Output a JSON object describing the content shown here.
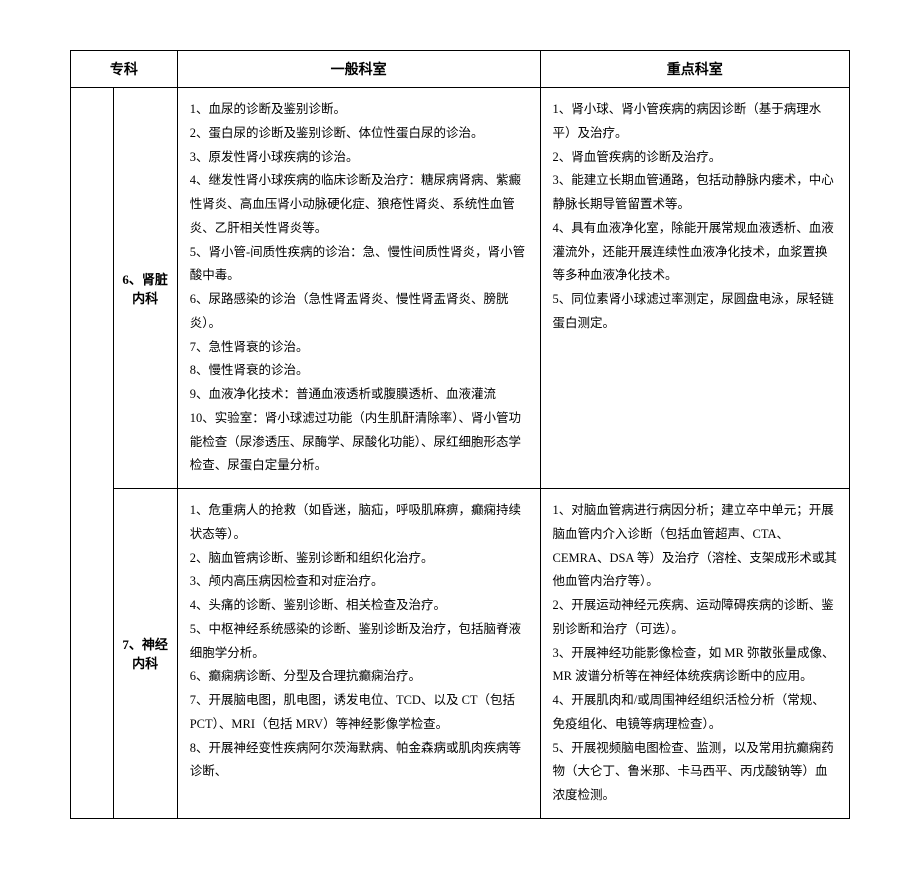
{
  "header": {
    "col1": "专科",
    "col2": "一般科室",
    "col3": "重点科室"
  },
  "rows": [
    {
      "sub": "6、肾脏内科",
      "general": [
        "1、血尿的诊断及鉴别诊断。",
        "2、蛋白尿的诊断及鉴别诊断、体位性蛋白尿的诊治。",
        "3、原发性肾小球疾病的诊治。",
        "4、继发性肾小球疾病的临床诊断及治疗：糖尿病肾病、紫癜性肾炎、高血压肾小动脉硬化症、狼疮性肾炎、系统性血管炎、乙肝相关性肾炎等。",
        "5、肾小管-间质性疾病的诊治：急、慢性间质性肾炎，肾小管酸中毒。",
        "6、尿路感染的诊治（急性肾盂肾炎、慢性肾盂肾炎、膀胱炎）。",
        "7、急性肾衰的诊治。",
        "8、慢性肾衰的诊治。",
        "9、血液净化技术：普通血液透析或腹膜透析、血液灌流",
        "10、实验室：肾小球滤过功能（内生肌酐清除率）、肾小管功能检查（尿渗透压、尿酶学、尿酸化功能）、尿红细胞形态学检查、尿蛋白定量分析。"
      ],
      "key": [
        "1、肾小球、肾小管疾病的病因诊断（基于病理水平）及治疗。",
        "2、肾血管疾病的诊断及治疗。",
        "3、能建立长期血管通路，包括动静脉内瘘术，中心静脉长期导管留置术等。",
        "4、具有血液净化室，除能开展常规血液透析、血液灌流外，还能开展连续性血液净化技术，血浆置换等多种血液净化技术。",
        "5、同位素肾小球滤过率测定，尿圆盘电泳，尿轻链蛋白测定。"
      ]
    },
    {
      "sub": "7、神经内科",
      "general": [
        "1、危重病人的抢救（如昏迷，脑疝，呼吸肌麻痹，癫痫持续状态等）。",
        "2、脑血管病诊断、鉴别诊断和组织化治疗。",
        "3、颅内高压病因检查和对症治疗。",
        "4、头痛的诊断、鉴别诊断、相关检查及治疗。",
        "5、中枢神经系统感染的诊断、鉴别诊断及治疗，包括脑脊液细胞学分析。",
        "6、癫痫病诊断、分型及合理抗癫痫治疗。",
        "7、开展脑电图，肌电图，诱发电位、TCD、以及 CT（包括 PCT）、MRI（包括 MRV）等神经影像学检查。",
        "8、开展神经变性疾病阿尔茨海默病、帕金森病或肌肉疾病等诊断、"
      ],
      "key": [
        "1、对脑血管病进行病因分析；建立卒中单元；开展脑血管内介入诊断（包括血管超声、CTA、CEMRA、DSA 等）及治疗（溶栓、支架成形术或其他血管内治疗等）。",
        "2、开展运动神经元疾病、运动障碍疾病的诊断、鉴别诊断和治疗（可选）。",
        "3、开展神经功能影像检查，如 MR 弥散张量成像、MR 波谱分析等在神经体统疾病诊断中的应用。",
        "4、开展肌肉和/或周围神经组织活检分析（常规、免疫组化、电镜等病理检查）。",
        "5、开展视频脑电图检查、监测，以及常用抗癫痫药物（大仑丁、鲁米那、卡马西平、丙戊酸钠等）血浓度检测。"
      ]
    }
  ]
}
